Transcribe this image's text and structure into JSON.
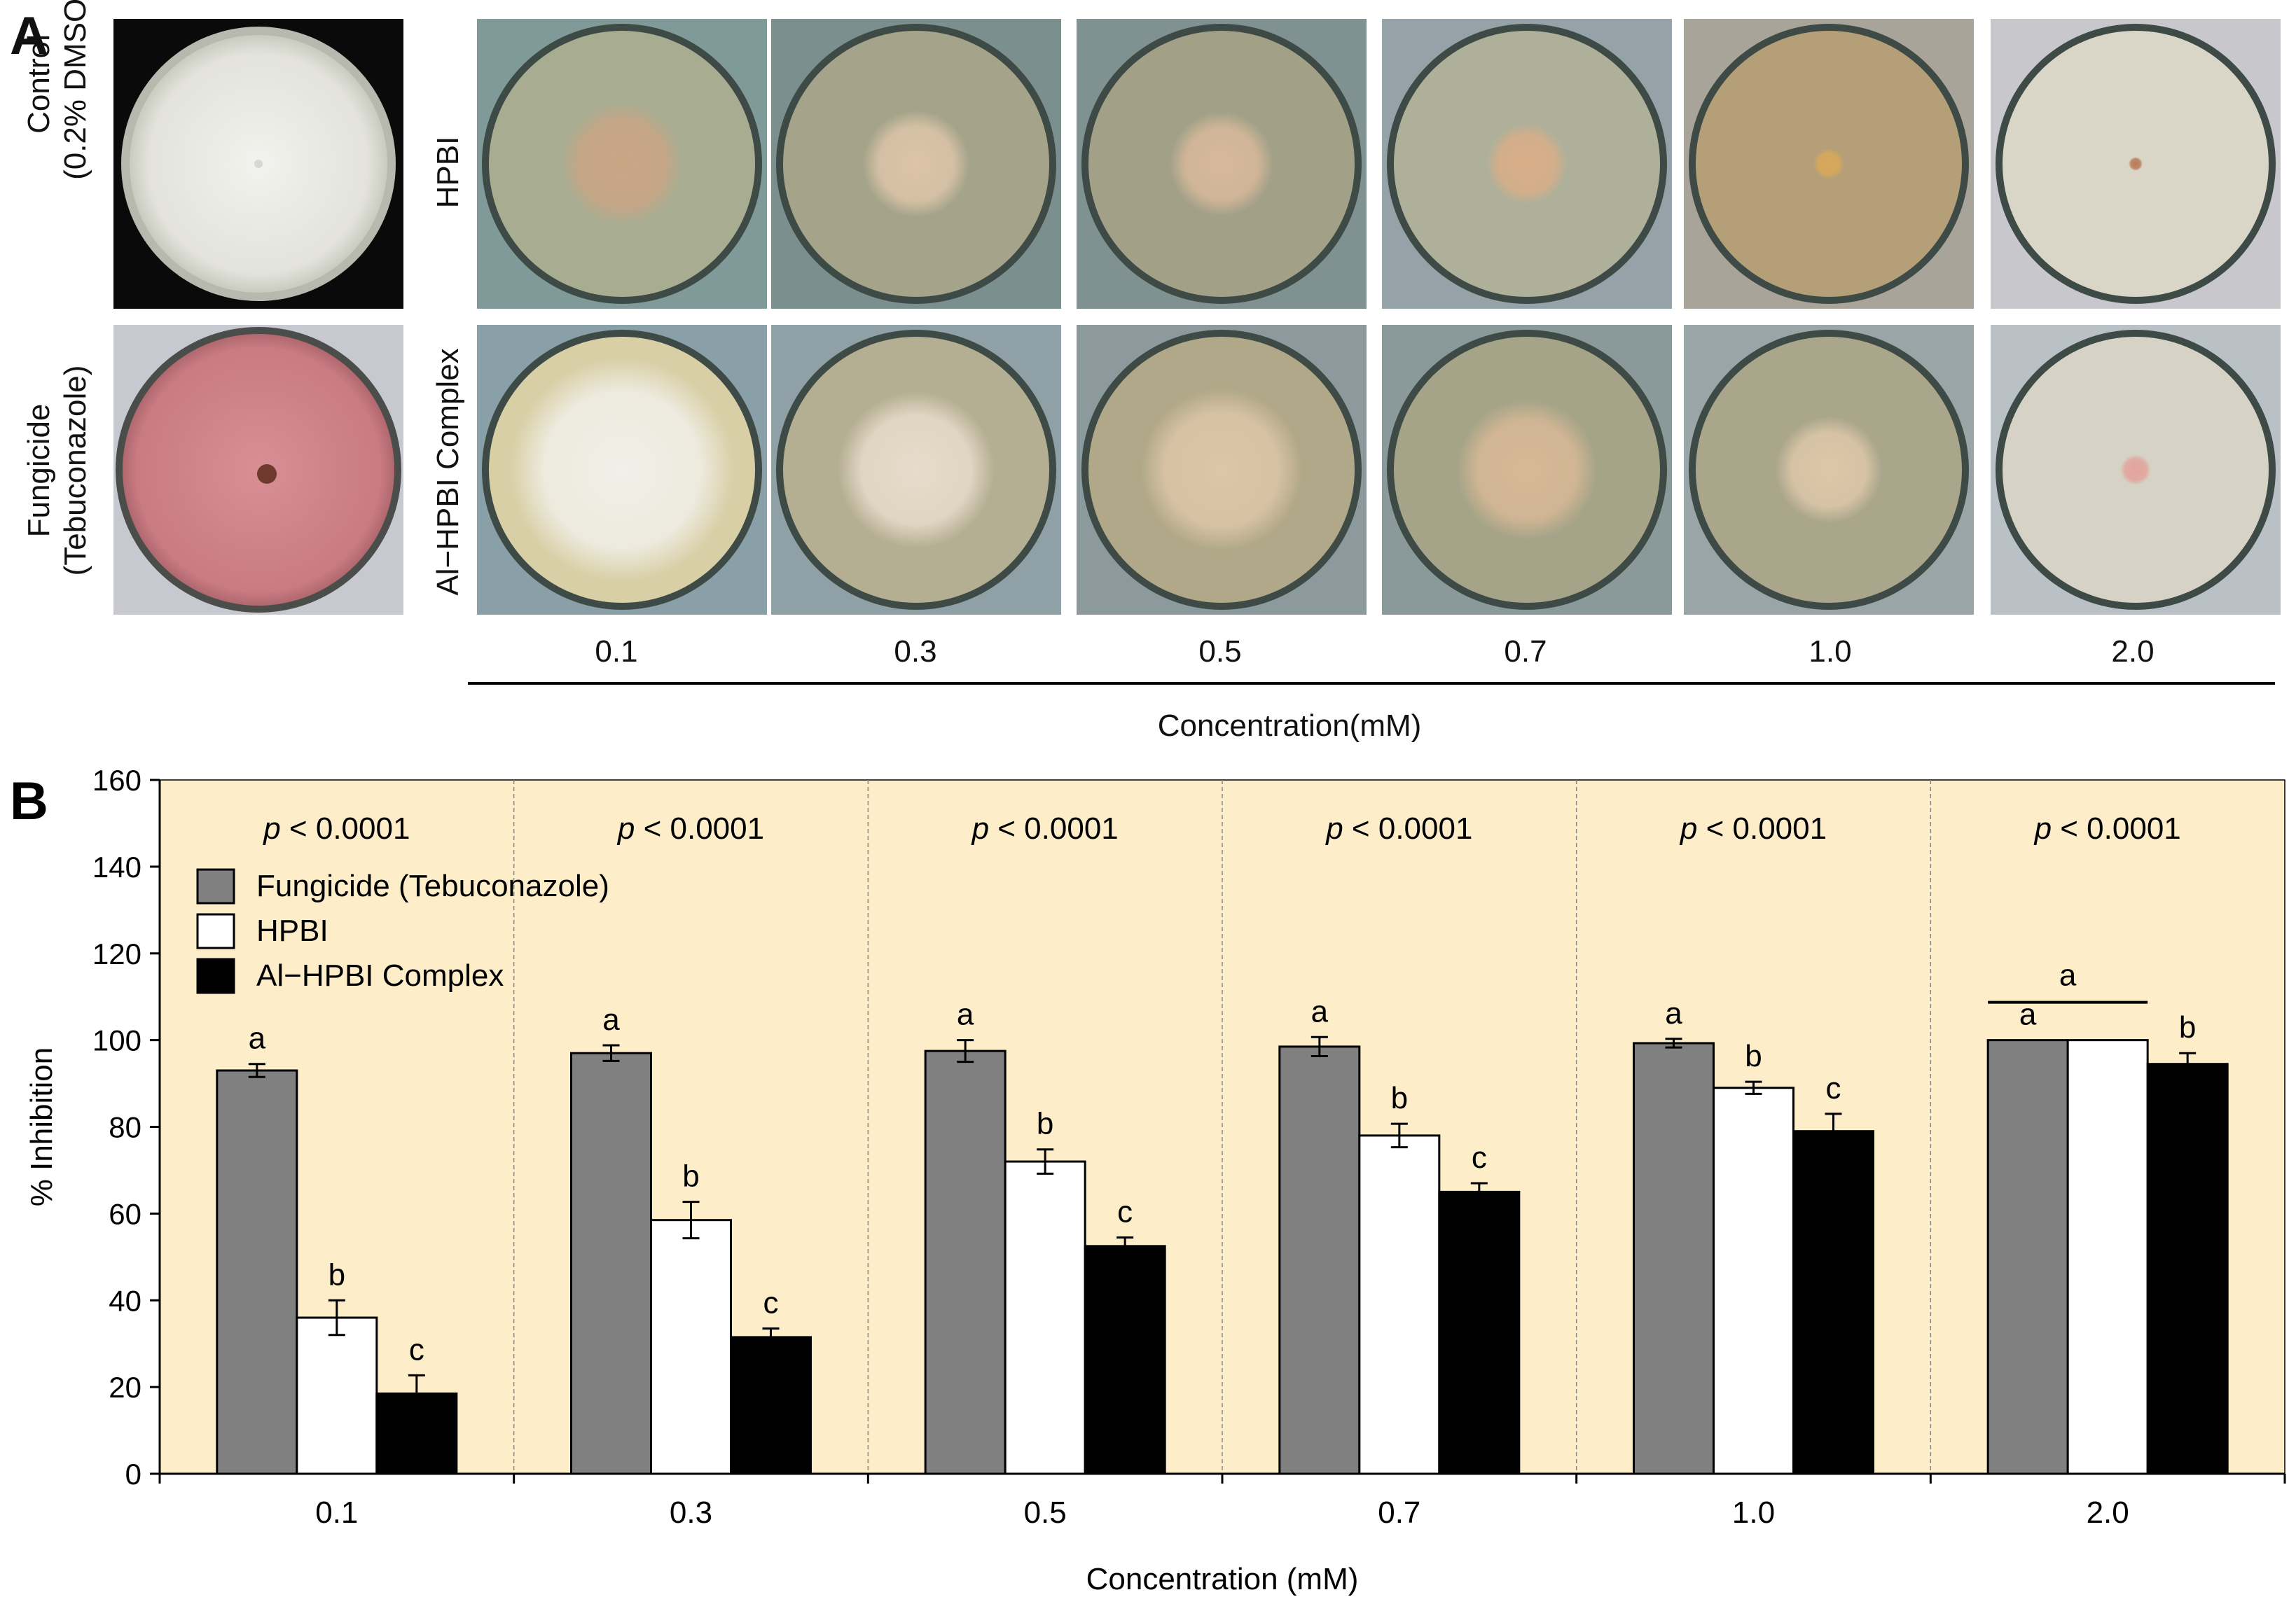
{
  "panel_a": {
    "letter": "A",
    "control_label_line1": "Control",
    "control_label_line2": "(0.2% DMSO)",
    "fungicide_label_line1": "Fungicide",
    "fungicide_label_line2": "(Tebuconazole)",
    "row1_label": "HPBI",
    "row2_label": "Al−HPBI Complex",
    "concentrations": [
      "0.1",
      "0.3",
      "0.5",
      "0.7",
      "1.0",
      "2.0"
    ],
    "axis_title": "Concentration(mM)"
  },
  "chart_data": {
    "type": "bar",
    "panel_letter": "B",
    "title": "",
    "xlabel": "Concentration (mM)",
    "ylabel": "% Inhibition",
    "ylim": [
      0,
      160
    ],
    "yticks": [
      "0",
      "20",
      "40",
      "60",
      "80",
      "100",
      "120",
      "140",
      "160"
    ],
    "categories": [
      "0.1",
      "0.3",
      "0.5",
      "0.7",
      "1.0",
      "2.0"
    ],
    "series": [
      {
        "name": "Fungicide (Tebuconazole)",
        "color": "#808080",
        "values": [
          93,
          97,
          97.5,
          98.5,
          99.3,
          100
        ],
        "errors": [
          1.5,
          1.8,
          2.5,
          2.2,
          1.0,
          0
        ]
      },
      {
        "name": "HPBI",
        "color": "#ffffff",
        "values": [
          36,
          58.5,
          72,
          78,
          89,
          100
        ],
        "errors": [
          4.0,
          4.2,
          2.8,
          2.7,
          1.4,
          0
        ]
      },
      {
        "name": "Al−HPBI Complex",
        "color": "#000000",
        "values": [
          18.5,
          31.5,
          52.5,
          65,
          79,
          94.5
        ],
        "errors": [
          4.2,
          2.0,
          2.0,
          2.0,
          4.0,
          2.5
        ]
      }
    ],
    "letters": [
      [
        "a",
        "b",
        "c"
      ],
      [
        "a",
        "b",
        "c"
      ],
      [
        "a",
        "b",
        "c"
      ],
      [
        "a",
        "b",
        "c"
      ],
      [
        "a",
        "b",
        "c"
      ],
      [
        "a",
        "",
        "b"
      ]
    ],
    "group_bracket_label": "a",
    "p_prefix": "p",
    "p_values": [
      "< 0.0001",
      "< 0.0001",
      "< 0.0001",
      "< 0.0001",
      "< 0.0001",
      "< 0.0001"
    ],
    "plot_background": "#fdedc9",
    "legend_position": "top-left"
  }
}
